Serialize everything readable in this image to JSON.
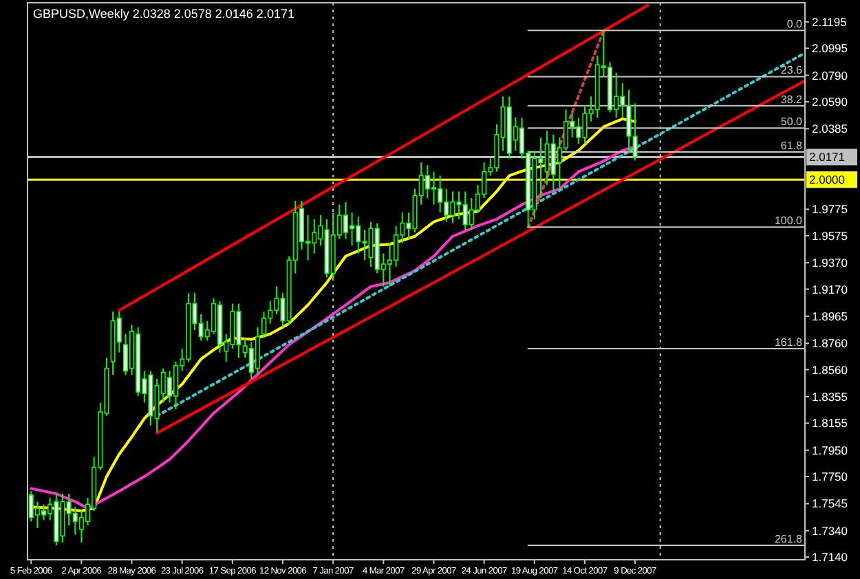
{
  "chart_data": {
    "type": "candlestick",
    "title": "GBPUSD,Weekly 2.0328 2.0578 2.0146 2.0171",
    "x": [
      "2006-02-05",
      "2006-02-12",
      "2006-02-19",
      "2006-02-26",
      "2006-03-05",
      "2006-03-12",
      "2006-03-19",
      "2006-03-26",
      "2006-04-02",
      "2006-04-09",
      "2006-04-16",
      "2006-04-23",
      "2006-04-30",
      "2006-05-07",
      "2006-05-14",
      "2006-05-21",
      "2006-05-28",
      "2006-06-04",
      "2006-06-11",
      "2006-06-18",
      "2006-06-25",
      "2006-07-02",
      "2006-07-09",
      "2006-07-16",
      "2006-07-23",
      "2006-07-30",
      "2006-08-06",
      "2006-08-13",
      "2006-08-20",
      "2006-08-27",
      "2006-09-03",
      "2006-09-10",
      "2006-09-17",
      "2006-09-24",
      "2006-10-01",
      "2006-10-08",
      "2006-10-15",
      "2006-10-22",
      "2006-10-29",
      "2006-11-05",
      "2006-11-12",
      "2006-11-19",
      "2006-11-26",
      "2006-12-03",
      "2006-12-10",
      "2006-12-17",
      "2006-12-24",
      "2006-12-31",
      "2007-01-07",
      "2007-01-14",
      "2007-01-21",
      "2007-01-28",
      "2007-02-04",
      "2007-02-11",
      "2007-02-18",
      "2007-02-25",
      "2007-03-04",
      "2007-03-11",
      "2007-03-18",
      "2007-03-25",
      "2007-04-01",
      "2007-04-08",
      "2007-04-15",
      "2007-04-22",
      "2007-04-29",
      "2007-05-06",
      "2007-05-13",
      "2007-05-20",
      "2007-05-27",
      "2007-06-03",
      "2007-06-10",
      "2007-06-17",
      "2007-06-24",
      "2007-07-01",
      "2007-07-08",
      "2007-07-15",
      "2007-07-22",
      "2007-07-29",
      "2007-08-05",
      "2007-08-12",
      "2007-08-19",
      "2007-08-26",
      "2007-09-02",
      "2007-09-09",
      "2007-09-16",
      "2007-09-23",
      "2007-09-30",
      "2007-10-07",
      "2007-10-14",
      "2007-10-21",
      "2007-10-28",
      "2007-11-04",
      "2007-11-11",
      "2007-11-18",
      "2007-11-25",
      "2007-12-02",
      "2007-12-09"
    ],
    "ohlc": [
      [
        1.761,
        1.764,
        1.741,
        1.744
      ],
      [
        1.746,
        1.756,
        1.736,
        1.751
      ],
      [
        1.749,
        1.754,
        1.742,
        1.746
      ],
      [
        1.747,
        1.759,
        1.742,
        1.754
      ],
      [
        1.756,
        1.762,
        1.723,
        1.726
      ],
      [
        1.73,
        1.762,
        1.725,
        1.756
      ],
      [
        1.756,
        1.762,
        1.738,
        1.747
      ],
      [
        1.747,
        1.752,
        1.731,
        1.741
      ],
      [
        1.735,
        1.749,
        1.725,
        1.744
      ],
      [
        1.741,
        1.759,
        1.738,
        1.754
      ],
      [
        1.751,
        1.79,
        1.749,
        1.782
      ],
      [
        1.782,
        1.831,
        1.78,
        1.824
      ],
      [
        1.823,
        1.865,
        1.821,
        1.857
      ],
      [
        1.862,
        1.9,
        1.852,
        1.893
      ],
      [
        1.895,
        1.9,
        1.869,
        1.877
      ],
      [
        1.875,
        1.883,
        1.852,
        1.855
      ],
      [
        1.857,
        1.89,
        1.852,
        1.885
      ],
      [
        1.883,
        1.888,
        1.836,
        1.839
      ],
      [
        1.849,
        1.855,
        1.831,
        1.838
      ],
      [
        1.852,
        1.855,
        1.814,
        1.821
      ],
      [
        1.819,
        1.849,
        1.809,
        1.844
      ],
      [
        1.838,
        1.857,
        1.831,
        1.854
      ],
      [
        1.85,
        1.855,
        1.831,
        1.836
      ],
      [
        1.836,
        1.862,
        1.826,
        1.859
      ],
      [
        1.859,
        1.872,
        1.855,
        1.864
      ],
      [
        1.864,
        1.914,
        1.862,
        1.906
      ],
      [
        1.906,
        1.914,
        1.886,
        1.891
      ],
      [
        1.891,
        1.898,
        1.878,
        1.881
      ],
      [
        1.881,
        1.893,
        1.878,
        1.886
      ],
      [
        1.885,
        1.91,
        1.883,
        1.906
      ],
      [
        1.905,
        1.908,
        1.869,
        1.875
      ],
      [
        1.87,
        1.883,
        1.862,
        1.877
      ],
      [
        1.875,
        1.906,
        1.872,
        1.9
      ],
      [
        1.9,
        1.906,
        1.865,
        1.875
      ],
      [
        1.869,
        1.88,
        1.865,
        1.874
      ],
      [
        1.872,
        1.877,
        1.849,
        1.854
      ],
      [
        1.857,
        1.888,
        1.852,
        1.881
      ],
      [
        1.883,
        1.9,
        1.88,
        1.895
      ],
      [
        1.895,
        1.908,
        1.891,
        1.901
      ],
      [
        1.901,
        1.919,
        1.898,
        1.91
      ],
      [
        1.91,
        1.914,
        1.888,
        1.893
      ],
      [
        1.893,
        1.942,
        1.89,
        1.939
      ],
      [
        1.939,
        1.984,
        1.929,
        1.975
      ],
      [
        1.978,
        1.984,
        1.947,
        1.953
      ],
      [
        1.953,
        1.973,
        1.939,
        1.952
      ],
      [
        1.952,
        1.97,
        1.944,
        1.96
      ],
      [
        1.955,
        1.973,
        1.95,
        1.965
      ],
      [
        1.962,
        1.97,
        1.926,
        1.929
      ],
      [
        1.929,
        1.975,
        1.924,
        1.958
      ],
      [
        1.958,
        1.981,
        1.955,
        1.973
      ],
      [
        1.973,
        1.983,
        1.955,
        1.96
      ],
      [
        1.965,
        1.975,
        1.95,
        1.963
      ],
      [
        1.965,
        1.972,
        1.944,
        1.953
      ],
      [
        1.953,
        1.962,
        1.939,
        1.952
      ],
      [
        1.941,
        1.968,
        1.934,
        1.963
      ],
      [
        1.963,
        1.967,
        1.929,
        1.932
      ],
      [
        1.932,
        1.944,
        1.919,
        1.936
      ],
      [
        1.936,
        1.952,
        1.919,
        1.939
      ],
      [
        1.939,
        1.965,
        1.934,
        1.958
      ],
      [
        1.958,
        1.975,
        1.952,
        1.967
      ],
      [
        1.967,
        1.975,
        1.955,
        1.963
      ],
      [
        1.963,
        1.993,
        1.96,
        1.988
      ],
      [
        1.988,
        2.013,
        1.981,
        2.003
      ],
      [
        2.003,
        2.011,
        1.986,
        1.993
      ],
      [
        1.994,
        2.006,
        1.981,
        1.993
      ],
      [
        1.993,
        2.003,
        1.975,
        1.983
      ],
      [
        1.983,
        1.993,
        1.968,
        1.973
      ],
      [
        1.973,
        1.991,
        1.967,
        1.983
      ],
      [
        1.983,
        1.991,
        1.97,
        1.981
      ],
      [
        1.981,
        1.991,
        1.962,
        1.966
      ],
      [
        1.966,
        1.986,
        1.962,
        1.977
      ],
      [
        1.977,
        1.996,
        1.975,
        1.989
      ],
      [
        1.989,
        2.013,
        1.986,
        2.006
      ],
      [
        2.006,
        2.016,
        2.003,
        2.009
      ],
      [
        2.009,
        2.042,
        2.006,
        2.034
      ],
      [
        2.032,
        2.063,
        2.022,
        2.055
      ],
      [
        2.055,
        2.063,
        2.016,
        2.02
      ],
      [
        2.03,
        2.047,
        2.022,
        2.04
      ],
      [
        2.039,
        2.047,
        2.016,
        2.02
      ],
      [
        2.02,
        2.022,
        1.964,
        1.977
      ],
      [
        1.977,
        2.022,
        1.97,
        2.016
      ],
      [
        2.016,
        2.032,
        1.986,
        2.013
      ],
      [
        2.006,
        2.037,
        1.996,
        2.027
      ],
      [
        2.027,
        2.034,
        1.991,
        2.004
      ],
      [
        2.013,
        2.032,
        1.994,
        2.024
      ],
      [
        2.024,
        2.053,
        2.022,
        2.044
      ],
      [
        2.044,
        2.051,
        2.032,
        2.04
      ],
      [
        2.04,
        2.047,
        2.027,
        2.032
      ],
      [
        2.032,
        2.055,
        2.027,
        2.05
      ],
      [
        2.05,
        2.063,
        2.044,
        2.053
      ],
      [
        2.053,
        2.094,
        2.047,
        2.087
      ],
      [
        2.086,
        2.113,
        2.078,
        2.085
      ],
      [
        2.085,
        2.089,
        2.051,
        2.053
      ],
      [
        2.053,
        2.081,
        2.047,
        2.063
      ],
      [
        2.063,
        2.073,
        2.047,
        2.056
      ],
      [
        2.056,
        2.068,
        2.02,
        2.033
      ],
      [
        2.0328,
        2.0578,
        2.0146,
        2.0171
      ]
    ],
    "series": [
      {
        "type": "line",
        "color": "#ffff00",
        "x": [
          "2006-02-05",
          "2006-03-05",
          "2006-04-02",
          "2006-04-16",
          "2006-04-30",
          "2006-05-14",
          "2006-05-28",
          "2006-06-11",
          "2006-06-25",
          "2006-07-23",
          "2006-08-13",
          "2006-08-27",
          "2006-09-17",
          "2006-10-08",
          "2006-10-29",
          "2006-11-19",
          "2006-12-10",
          "2006-12-31",
          "2007-01-21",
          "2007-02-18",
          "2007-03-11",
          "2007-04-08",
          "2007-04-29",
          "2007-05-20",
          "2007-06-17",
          "2007-07-08",
          "2007-07-22",
          "2007-08-12",
          "2007-09-02",
          "2007-09-16",
          "2007-10-07",
          "2007-11-04",
          "2007-11-25",
          "2007-12-09"
        ],
        "values": [
          1.752,
          1.751,
          1.749,
          1.751,
          1.775,
          1.792,
          1.805,
          1.819,
          1.829,
          1.845,
          1.864,
          1.871,
          1.88,
          1.879,
          1.883,
          1.891,
          1.905,
          1.922,
          1.942,
          1.95,
          1.951,
          1.957,
          1.968,
          1.973,
          1.976,
          1.991,
          2.003,
          2.008,
          2.011,
          2.013,
          2.022,
          2.04,
          2.046,
          2.044
        ]
      },
      {
        "type": "line",
        "color": "#ff33cc",
        "x": [
          "2006-02-05",
          "2006-03-05",
          "2006-03-26",
          "2006-04-09",
          "2006-05-14",
          "2006-06-11",
          "2006-07-09",
          "2006-07-30",
          "2006-08-27",
          "2006-09-24",
          "2006-10-22",
          "2006-11-19",
          "2006-12-17",
          "2007-01-21",
          "2007-02-18",
          "2007-03-11",
          "2007-04-08",
          "2007-04-29",
          "2007-05-20",
          "2007-06-17",
          "2007-07-08",
          "2007-08-05",
          "2007-08-26",
          "2007-09-16",
          "2007-10-07",
          "2007-11-04",
          "2007-11-25",
          "2007-12-09"
        ],
        "values": [
          1.766,
          1.762,
          1.756,
          1.751,
          1.764,
          1.775,
          1.788,
          1.802,
          1.823,
          1.839,
          1.857,
          1.875,
          1.888,
          1.905,
          1.919,
          1.922,
          1.931,
          1.942,
          1.957,
          1.965,
          1.97,
          1.981,
          1.988,
          1.993,
          2.006,
          2.014,
          2.022,
          2.025
        ]
      },
      {
        "type": "line",
        "color": "#33cccc",
        "line_style": "dotted",
        "x": [
          "2006-06-25",
          "2008-06-15"
        ],
        "values": [
          1.821,
          2.096
        ]
      },
      {
        "type": "line",
        "color": "#ff0000",
        "x": [
          "2006-05-14",
          "2007-12-23"
        ],
        "values": [
          1.901,
          2.132
        ]
      },
      {
        "type": "line",
        "color": "#ff0000",
        "x": [
          "2006-06-25",
          "2008-06-15"
        ],
        "values": [
          1.808,
          2.075
        ]
      },
      {
        "type": "line",
        "color": "#d04040",
        "line_style": "dotted",
        "x": [
          "2007-08-12",
          "2007-11-04"
        ],
        "values": [
          1.964,
          2.113
        ]
      },
      {
        "type": "line",
        "name": "0.0",
        "color": "#c8c8c8",
        "x": [
          "2007-08-12",
          "2008-06-15"
        ],
        "values": [
          2.113,
          2.113
        ]
      },
      {
        "type": "line",
        "name": "23.6",
        "color": "#c8c8c8",
        "x": [
          "2007-08-12",
          "2008-06-15"
        ],
        "values": [
          2.078,
          2.078
        ]
      },
      {
        "type": "line",
        "name": "38.2",
        "color": "#c8c8c8",
        "x": [
          "2007-08-12",
          "2008-06-15"
        ],
        "values": [
          2.056,
          2.056
        ]
      },
      {
        "type": "line",
        "name": "50.0",
        "color": "#c8c8c8",
        "x": [
          "2007-08-12",
          "2008-06-15"
        ],
        "values": [
          2.039,
          2.039
        ]
      },
      {
        "type": "line",
        "name": "61.8",
        "color": "#c8c8c8",
        "x": [
          "2007-08-12",
          "2008-06-15"
        ],
        "values": [
          2.021,
          2.021
        ]
      },
      {
        "type": "line",
        "name": "100.0",
        "color": "#c8c8c8",
        "x": [
          "2007-08-12",
          "2008-06-15"
        ],
        "values": [
          1.964,
          1.964
        ]
      },
      {
        "type": "line",
        "name": "161.8",
        "color": "#c8c8c8",
        "x": [
          "2007-08-12",
          "2008-06-15"
        ],
        "values": [
          1.872,
          1.872
        ]
      },
      {
        "type": "line",
        "name": "261.8",
        "color": "#c8c8c8",
        "x": [
          "2007-08-12",
          "2008-06-15"
        ],
        "values": [
          1.723,
          1.723
        ]
      }
    ],
    "ref_lines": [
      {
        "axis": "y",
        "value": 2.0,
        "label": "2.0000",
        "color": "#ffff00"
      },
      {
        "axis": "y",
        "value": 2.0171,
        "label": "2.0171",
        "color": "#c0c0c0"
      },
      {
        "axis": "x",
        "value": "2007-01-07",
        "label": null,
        "color": "#c0c0c0",
        "line_style": "dotted"
      },
      {
        "axis": "x",
        "value": "2008-01-06",
        "label": null,
        "color": "#c0c0c0",
        "line_style": "dotted"
      }
    ],
    "xlim": [
      "2006-02-01",
      "2008-06-15"
    ],
    "xticks": [
      {
        "value": "2006-02-05",
        "label": "5 Feb 2006"
      },
      {
        "value": "2006-04-02",
        "label": "2 Apr 2006"
      },
      {
        "value": "2006-05-28",
        "label": "28 May 2006"
      },
      {
        "value": "2006-07-23",
        "label": "23 Jul 2006"
      },
      {
        "value": "2006-09-17",
        "label": "17 Sep 2006"
      },
      {
        "value": "2006-11-12",
        "label": "12 Nov 2006"
      },
      {
        "value": "2007-01-07",
        "label": "7 Jan 2007"
      },
      {
        "value": "2007-03-04",
        "label": "4 Mar 2007"
      },
      {
        "value": "2007-04-29",
        "label": "29 Apr 2007"
      },
      {
        "value": "2007-06-24",
        "label": "24 Jun 2007"
      },
      {
        "value": "2007-08-19",
        "label": "19 Aug 2007"
      },
      {
        "value": "2007-10-14",
        "label": "14 Oct 2007"
      },
      {
        "value": "2007-12-09",
        "label": "9 Dec 2007"
      }
    ],
    "ylim": [
      1.712,
      2.134
    ],
    "yticks": [
      2.1195,
      2.0995,
      {
        "value": 2.079,
        "label": "2.0790"
      },
      {
        "value": 2.059,
        "label": "2.0590"
      },
      2.0385,
      1.9775,
      1.9575,
      {
        "value": 1.937,
        "label": "1.9370"
      },
      {
        "value": 1.917,
        "label": "1.9170"
      },
      1.8965,
      {
        "value": 1.876,
        "label": "1.8760"
      },
      {
        "value": 1.856,
        "label": "1.8560"
      },
      1.8355,
      1.8155,
      {
        "value": 1.795,
        "label": "1.7950"
      },
      {
        "value": 1.775,
        "label": "1.7750"
      },
      1.7545,
      {
        "value": 1.734,
        "label": "1.7340"
      },
      {
        "value": 1.714,
        "label": "1.7140"
      }
    ],
    "grid": false,
    "legend": "right"
  }
}
